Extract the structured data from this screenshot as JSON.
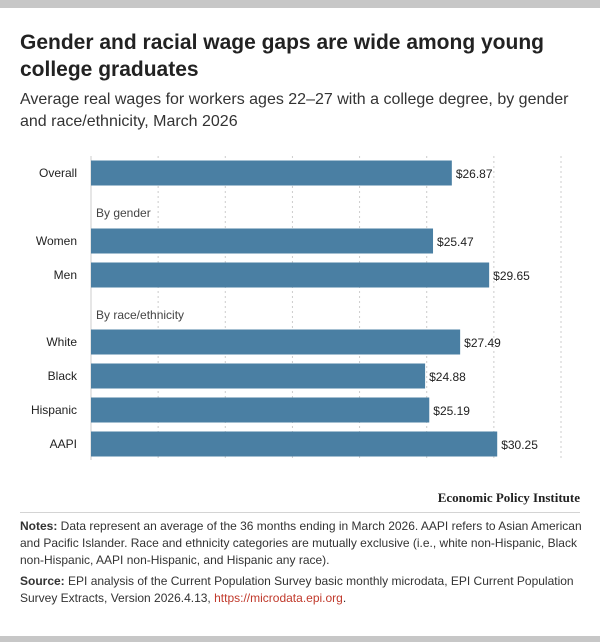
{
  "header": {
    "title": "Gender and racial wage gaps are wide among young college graduates",
    "subtitle": "Average real wages for workers ages 22–27 with a college degree, by gender and race/ethnicity, March 2026"
  },
  "chart_data": {
    "type": "bar",
    "orientation": "horizontal",
    "categories": [
      "Overall",
      "Women",
      "Men",
      "White",
      "Black",
      "Hispanic",
      "AAPI"
    ],
    "values": [
      26.87,
      25.47,
      29.65,
      27.49,
      24.88,
      25.19,
      30.25
    ],
    "value_labels": [
      "$26.87",
      "$25.47",
      "$29.65",
      "$27.49",
      "$24.88",
      "$25.19",
      "$30.25"
    ],
    "group_headers": [
      "By gender",
      "By race/ethnicity"
    ],
    "xlim": [
      0,
      35
    ],
    "grid": true,
    "bar_color": "#4a7fa3"
  },
  "footer": {
    "publisher": "Economic Policy Institute",
    "notes_label": "Notes:",
    "notes_text": " Data represent an average of the 36 months ending in March 2026. AAPI refers to Asian American and Pacific Islander. Race and ethnicity categories are mutually exclusive (i.e., white non-Hispanic, Black non-Hispanic, AAPI non-Hispanic, and Hispanic any race).",
    "source_label": "Source:",
    "source_text": " EPI analysis of the Current Population Survey basic monthly microdata, EPI Current Population Survey Extracts, Version 2026.4.13, ",
    "source_link": "https://microdata.epi.org",
    "source_end": "."
  },
  "colors": {
    "bar": "#4a7fa3",
    "grid": "#cccccc",
    "link": "#c0392b",
    "rule": "#c7c7c7"
  }
}
